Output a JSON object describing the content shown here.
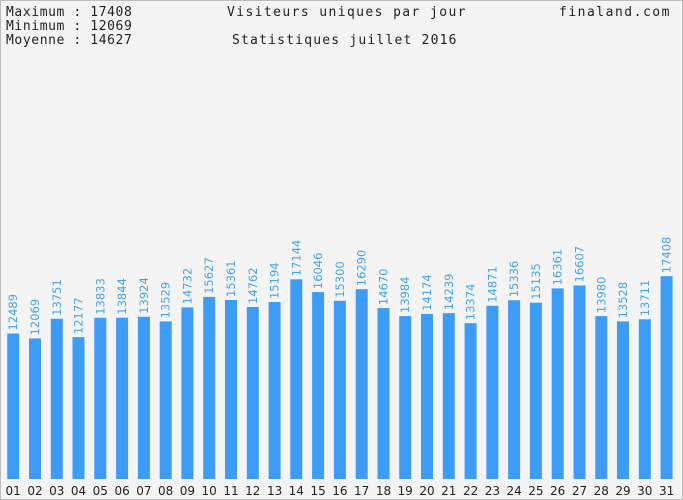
{
  "stats": {
    "max_label": "Maximum",
    "max_value": "17408",
    "min_label": "Minimum",
    "min_value": "12069",
    "avg_label": "Moyenne",
    "avg_value": "14627"
  },
  "site": "finaland.com",
  "colors": {
    "bar": "#3c9cf6",
    "value_label": "#45a3ef",
    "background": "#f4f4f4"
  },
  "chart_data": {
    "type": "bar",
    "title": "Visiteurs uniques par jour",
    "subtitle": "Statistiques juillet 2016",
    "categories": [
      "01",
      "02",
      "03",
      "04",
      "05",
      "06",
      "07",
      "08",
      "09",
      "10",
      "11",
      "12",
      "13",
      "14",
      "15",
      "16",
      "17",
      "18",
      "19",
      "20",
      "21",
      "22",
      "23",
      "24",
      "25",
      "26",
      "27",
      "28",
      "29",
      "30",
      "31"
    ],
    "values": [
      12489,
      12069,
      13751,
      12177,
      13833,
      13844,
      13924,
      13529,
      14732,
      15627,
      15361,
      14762,
      15194,
      17144,
      16046,
      15300,
      16290,
      14670,
      13984,
      14174,
      14239,
      13374,
      14871,
      15336,
      15135,
      16361,
      16607,
      13980,
      13528,
      13711,
      17408
    ],
    "xlabel": "",
    "ylabel": "",
    "ylim": [
      0,
      40000
    ],
    "grid": false,
    "legend": "none"
  }
}
